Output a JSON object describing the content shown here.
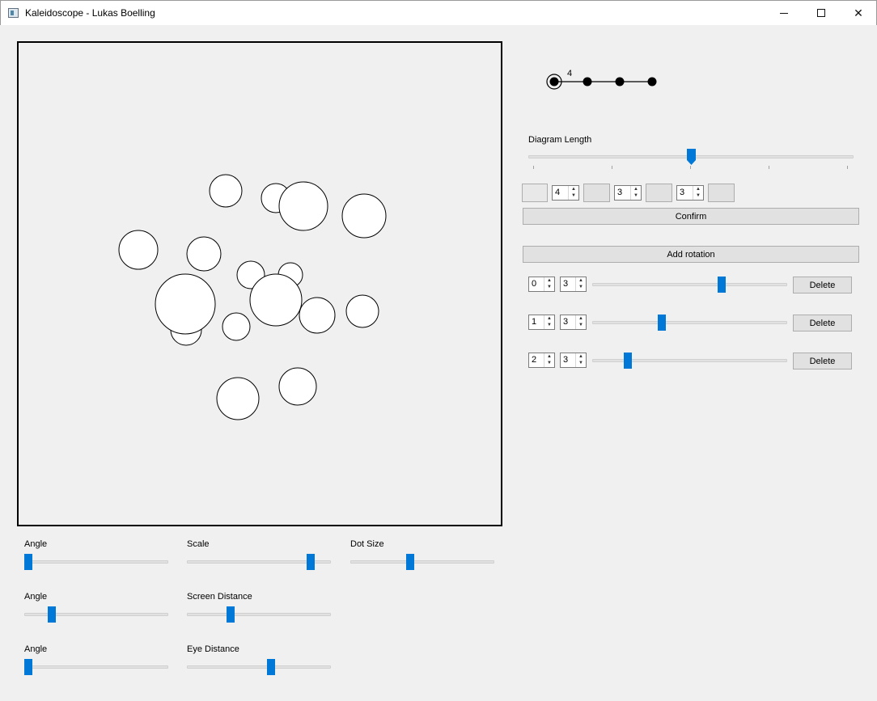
{
  "window": {
    "title": "Kaleidoscope - Lukas Boelling",
    "minimize_icon": "minimize-icon",
    "maximize_icon": "maximize-icon",
    "close_icon": "close-icon"
  },
  "diagram": {
    "node_label": "4",
    "length_label": "Diagram Length",
    "length_value_fraction": 0.5
  },
  "coxeter_inputs": [
    {
      "value": "4"
    },
    {
      "value": "3"
    },
    {
      "value": "3"
    }
  ],
  "confirm_label": "Confirm",
  "add_rotation_label": "Add rotation",
  "rotations": [
    {
      "a": "0",
      "b": "3",
      "level": 0.67,
      "delete_label": "Delete"
    },
    {
      "a": "1",
      "b": "3",
      "level": 0.35,
      "delete_label": "Delete"
    },
    {
      "a": "2",
      "b": "3",
      "level": 0.17,
      "delete_label": "Delete"
    }
  ],
  "controls": {
    "angle1": {
      "label": "Angle",
      "level": 0.0
    },
    "scale": {
      "label": "Scale",
      "level": 0.88
    },
    "dot_size": {
      "label": "Dot Size",
      "level": 0.41
    },
    "angle2": {
      "label": "Angle",
      "level": 0.17
    },
    "screen_distance": {
      "label": "Screen Distance",
      "level": 0.29
    },
    "angle3": {
      "label": "Angle",
      "level": 0.0
    },
    "eye_distance": {
      "label": "Eye Distance",
      "level": 0.59
    }
  },
  "circles_color": "#ffffff",
  "accent_color": "#0078d7"
}
